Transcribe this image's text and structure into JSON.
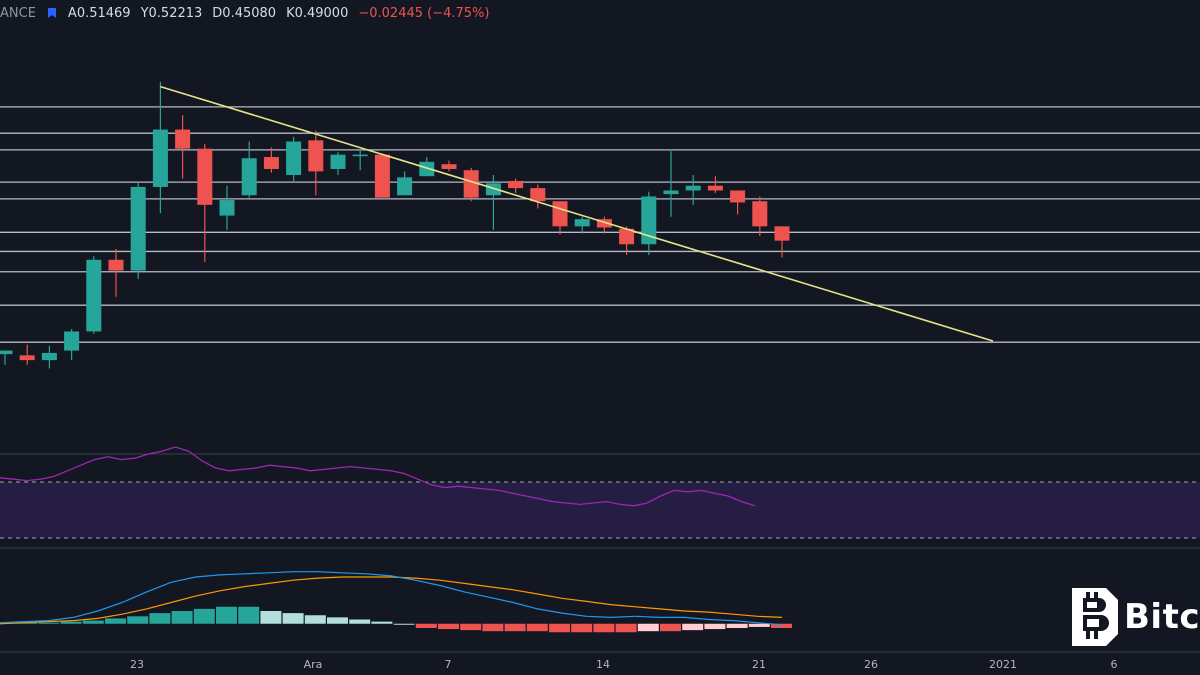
{
  "header": {
    "symbol_fragment": "ANCE",
    "open": "A0.51469",
    "high": "Y0.52213",
    "low": "D0.45080",
    "close": "K0.49000",
    "change": "−0.02445 (−4.75%)"
  },
  "watermark": {
    "text": "Bitc",
    "icon": "bitcoin-logo-icon"
  },
  "colors": {
    "background": "#131722",
    "bull": "#26a69a",
    "bear": "#ef5350",
    "trendline": "#e6e38c",
    "hline": "#c8ccd6",
    "rsi": "#9c27b0",
    "rsi_band": "#2a1f4a",
    "macd": "#2196f3",
    "signal": "#ff9800",
    "hist_up_strong": "#26a69a",
    "hist_up_weak": "#b2dfdb",
    "hist_down_strong": "#ef5350",
    "hist_down_weak": "#ffcdd2"
  },
  "chart_data": {
    "type": "candlestick",
    "x_ticks": [
      "23",
      "Ara",
      "7",
      "14",
      "21",
      "26",
      "2021",
      "6"
    ],
    "price": {
      "ylim": [
        0.2,
        0.56
      ],
      "candles": [
        {
          "o": 0.297,
          "h": 0.3,
          "l": 0.288,
          "c": 0.3
        },
        {
          "o": 0.296,
          "h": 0.305,
          "l": 0.288,
          "c": 0.292
        },
        {
          "o": 0.292,
          "h": 0.304,
          "l": 0.285,
          "c": 0.298
        },
        {
          "o": 0.3,
          "h": 0.318,
          "l": 0.292,
          "c": 0.316
        },
        {
          "o": 0.316,
          "h": 0.379,
          "l": 0.314,
          "c": 0.376
        },
        {
          "o": 0.376,
          "h": 0.385,
          "l": 0.345,
          "c": 0.367
        },
        {
          "o": 0.367,
          "h": 0.441,
          "l": 0.36,
          "c": 0.437
        },
        {
          "o": 0.437,
          "h": 0.525,
          "l": 0.415,
          "c": 0.485
        },
        {
          "o": 0.485,
          "h": 0.497,
          "l": 0.444,
          "c": 0.469
        },
        {
          "o": 0.469,
          "h": 0.473,
          "l": 0.374,
          "c": 0.422
        },
        {
          "o": 0.413,
          "h": 0.438,
          "l": 0.401,
          "c": 0.426
        },
        {
          "o": 0.43,
          "h": 0.475,
          "l": 0.428,
          "c": 0.461
        },
        {
          "o": 0.462,
          "h": 0.47,
          "l": 0.449,
          "c": 0.452
        },
        {
          "o": 0.447,
          "h": 0.479,
          "l": 0.442,
          "c": 0.475
        },
        {
          "o": 0.476,
          "h": 0.484,
          "l": 0.43,
          "c": 0.45
        },
        {
          "o": 0.452,
          "h": 0.466,
          "l": 0.447,
          "c": 0.464
        },
        {
          "o": 0.464,
          "h": 0.468,
          "l": 0.451,
          "c": 0.464
        },
        {
          "o": 0.464,
          "h": 0.465,
          "l": 0.428,
          "c": 0.428
        },
        {
          "o": 0.43,
          "h": 0.45,
          "l": 0.43,
          "c": 0.445
        },
        {
          "o": 0.446,
          "h": 0.462,
          "l": 0.446,
          "c": 0.458
        },
        {
          "o": 0.456,
          "h": 0.459,
          "l": 0.45,
          "c": 0.452
        },
        {
          "o": 0.451,
          "h": 0.453,
          "l": 0.425,
          "c": 0.428
        },
        {
          "o": 0.43,
          "h": 0.447,
          "l": 0.401,
          "c": 0.44
        },
        {
          "o": 0.442,
          "h": 0.444,
          "l": 0.432,
          "c": 0.436
        },
        {
          "o": 0.436,
          "h": 0.439,
          "l": 0.419,
          "c": 0.425
        },
        {
          "o": 0.425,
          "h": 0.425,
          "l": 0.397,
          "c": 0.404
        },
        {
          "o": 0.404,
          "h": 0.412,
          "l": 0.398,
          "c": 0.41
        },
        {
          "o": 0.41,
          "h": 0.412,
          "l": 0.398,
          "c": 0.403
        },
        {
          "o": 0.402,
          "h": 0.404,
          "l": 0.38,
          "c": 0.389
        },
        {
          "o": 0.389,
          "h": 0.433,
          "l": 0.38,
          "c": 0.429
        },
        {
          "o": 0.431,
          "h": 0.467,
          "l": 0.412,
          "c": 0.434
        },
        {
          "o": 0.434,
          "h": 0.447,
          "l": 0.422,
          "c": 0.438
        },
        {
          "o": 0.438,
          "h": 0.446,
          "l": 0.432,
          "c": 0.434
        },
        {
          "o": 0.434,
          "h": 0.434,
          "l": 0.414,
          "c": 0.424
        },
        {
          "o": 0.425,
          "h": 0.429,
          "l": 0.396,
          "c": 0.404
        },
        {
          "o": 0.404,
          "h": 0.404,
          "l": 0.378,
          "c": 0.392
        }
      ],
      "hlines": [
        0.504,
        0.482,
        0.468,
        0.441,
        0.427,
        0.399,
        0.383,
        0.366,
        0.338,
        0.307
      ],
      "trendline": [
        {
          "i": 7,
          "v": 0.521
        },
        {
          "i": 44.5,
          "v": 0.308
        }
      ]
    },
    "rsi": {
      "band": [
        30,
        70
      ],
      "ylim": [
        0,
        100
      ],
      "values": [
        73,
        72,
        71,
        72,
        74,
        78,
        82,
        86,
        88,
        86,
        87,
        90,
        92,
        95,
        92,
        85,
        80,
        78,
        79,
        80,
        82,
        81,
        80,
        78,
        79,
        80,
        81,
        80,
        79,
        78,
        76,
        72,
        68,
        66,
        67,
        66,
        65,
        64,
        62,
        60,
        58,
        56,
        55,
        54,
        55,
        56,
        54,
        53,
        55,
        60,
        64,
        63,
        64,
        62,
        60,
        56,
        53
      ]
    },
    "macd": {
      "ylim": [
        -0.02,
        0.06
      ],
      "macd": [
        0.001,
        0.002,
        0.003,
        0.006,
        0.012,
        0.02,
        0.03,
        0.039,
        0.044,
        0.046,
        0.047,
        0.048,
        0.049,
        0.049,
        0.048,
        0.047,
        0.045,
        0.041,
        0.036,
        0.03,
        0.025,
        0.02,
        0.014,
        0.01,
        0.007,
        0.006,
        0.007,
        0.006,
        0.006,
        0.004,
        0.003,
        0.001,
        -0.001
      ],
      "signal": [
        0.0,
        0.001,
        0.002,
        0.003,
        0.005,
        0.009,
        0.014,
        0.02,
        0.026,
        0.031,
        0.035,
        0.038,
        0.041,
        0.043,
        0.044,
        0.044,
        0.044,
        0.043,
        0.041,
        0.038,
        0.035,
        0.032,
        0.028,
        0.024,
        0.021,
        0.018,
        0.016,
        0.014,
        0.012,
        0.011,
        0.009,
        0.007,
        0.006
      ],
      "hist": [
        0.001,
        0.001,
        0.001,
        0.002,
        0.003,
        0.005,
        0.007,
        0.01,
        0.012,
        0.014,
        0.016,
        0.016,
        0.012,
        0.01,
        0.008,
        0.006,
        0.004,
        0.002,
        0.0,
        -0.004,
        -0.005,
        -0.006,
        -0.007,
        -0.007,
        -0.007,
        -0.008,
        -0.008,
        -0.008,
        -0.008,
        -0.007,
        -0.007,
        -0.006,
        -0.005,
        -0.004,
        -0.003,
        -0.004
      ]
    }
  }
}
